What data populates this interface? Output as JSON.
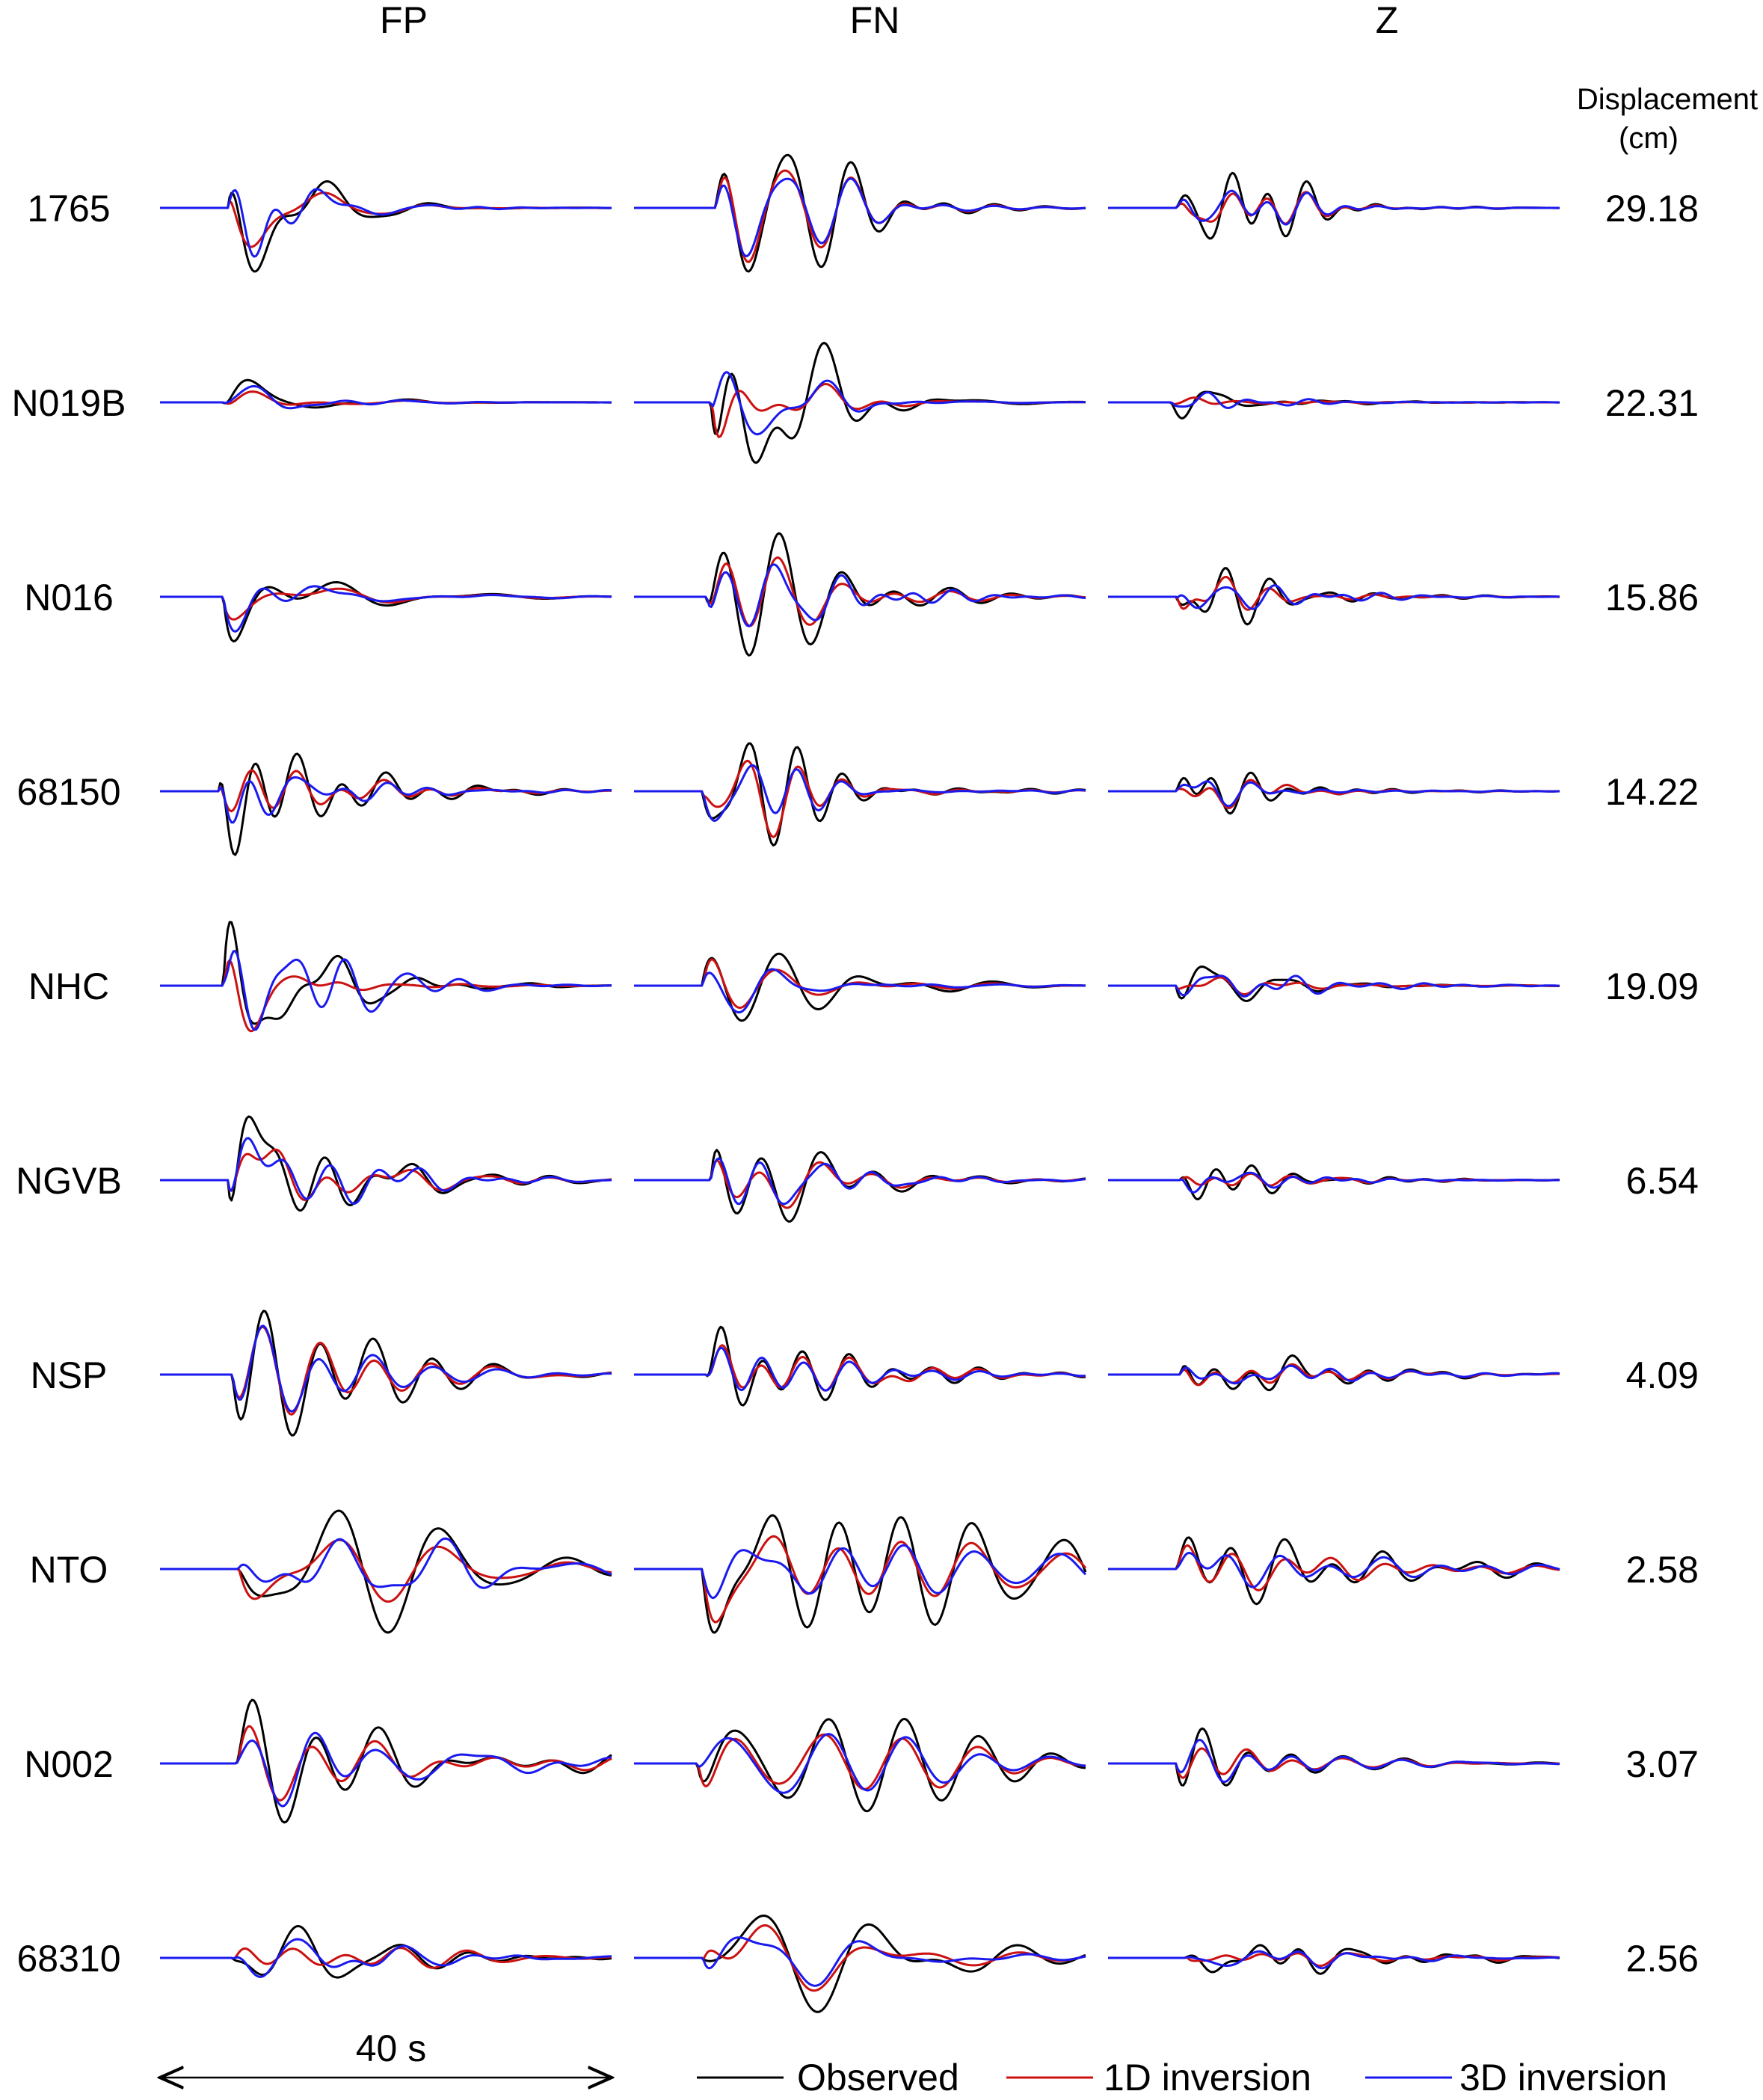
{
  "chart_data": {
    "type": "line",
    "column_headers": [
      "FP",
      "FN",
      "Z"
    ],
    "value_header": [
      "Displacement",
      "(cm)"
    ],
    "time_scale_label": "40 s",
    "time_scale_seconds": 40,
    "legend": [
      {
        "label": "Observed",
        "color": "#000000"
      },
      {
        "label": "1D inversion",
        "color": "#cc1111"
      },
      {
        "label": "3D inversion",
        "color": "#1a1aee"
      }
    ],
    "legend_position": "bottom-right",
    "series_colors": {
      "observed": "#000000",
      "inv1d": "#cc1111",
      "inv3d": "#1a1aee"
    },
    "stations": [
      {
        "name": "1765",
        "displacement_cm": "29.18",
        "amp": [
          1.0,
          1.0,
          0.55
        ],
        "onset": [
          0.15,
          0.18,
          0.15
        ],
        "freq": [
          1.0,
          1.0,
          1.2
        ],
        "decay": [
          1.0,
          1.0,
          1.0
        ],
        "fit": [
          0.75,
          0.8,
          0.7
        ]
      },
      {
        "name": "N019B",
        "displacement_cm": "22.31",
        "amp": [
          0.35,
          0.95,
          0.25
        ],
        "onset": [
          0.14,
          0.17,
          0.14
        ],
        "freq": [
          0.9,
          1.0,
          1.3
        ],
        "decay": [
          0.9,
          1.0,
          0.9
        ],
        "fit": [
          0.7,
          0.45,
          0.45
        ]
      },
      {
        "name": "N016",
        "displacement_cm": "15.86",
        "amp": [
          0.7,
          1.0,
          0.45
        ],
        "onset": [
          0.14,
          0.16,
          0.15
        ],
        "freq": [
          0.8,
          1.1,
          1.2
        ],
        "decay": [
          0.8,
          0.8,
          0.8
        ],
        "fit": [
          0.8,
          0.75,
          0.7
        ]
      },
      {
        "name": "68150",
        "displacement_cm": "14.22",
        "amp": [
          1.0,
          0.85,
          0.35
        ],
        "onset": [
          0.13,
          0.15,
          0.15
        ],
        "freq": [
          1.0,
          1.1,
          1.2
        ],
        "decay": [
          0.75,
          0.8,
          0.8
        ],
        "fit": [
          0.6,
          0.65,
          0.65
        ]
      },
      {
        "name": "NHC",
        "displacement_cm": "19.09",
        "amp": [
          1.0,
          0.55,
          0.3
        ],
        "onset": [
          0.14,
          0.15,
          0.15
        ],
        "freq": [
          1.0,
          0.9,
          1.2
        ],
        "decay": [
          0.8,
          0.7,
          0.8
        ],
        "fit": [
          0.35,
          0.55,
          0.5
        ]
      },
      {
        "name": "NGVB",
        "displacement_cm": "6.54",
        "amp": [
          1.0,
          0.65,
          0.3
        ],
        "onset": [
          0.15,
          0.17,
          0.16
        ],
        "freq": [
          0.9,
          1.0,
          1.2
        ],
        "decay": [
          0.75,
          0.7,
          0.7
        ],
        "fit": [
          0.7,
          0.75,
          0.6
        ]
      },
      {
        "name": "NSP",
        "displacement_cm": "4.09",
        "amp": [
          1.0,
          0.75,
          0.3
        ],
        "onset": [
          0.16,
          0.16,
          0.16
        ],
        "freq": [
          0.75,
          0.9,
          1.0
        ],
        "decay": [
          0.5,
          0.55,
          0.55
        ],
        "fit": [
          0.75,
          0.8,
          0.75
        ]
      },
      {
        "name": "NTO",
        "displacement_cm": "2.58",
        "amp": [
          1.0,
          1.0,
          0.55
        ],
        "onset": [
          0.17,
          0.15,
          0.15
        ],
        "freq": [
          0.7,
          0.75,
          0.8
        ],
        "decay": [
          0.45,
          0.4,
          0.45
        ],
        "fit": [
          0.7,
          0.6,
          0.7
        ]
      },
      {
        "name": "N002",
        "displacement_cm": "3.07",
        "amp": [
          1.0,
          0.75,
          0.55
        ],
        "onset": [
          0.17,
          0.14,
          0.15
        ],
        "freq": [
          0.75,
          0.65,
          0.9
        ],
        "decay": [
          0.4,
          0.4,
          0.45
        ],
        "fit": [
          0.7,
          0.65,
          0.7
        ]
      },
      {
        "name": "68310",
        "displacement_cm": "2.56",
        "amp": [
          0.5,
          0.85,
          0.25
        ],
        "onset": [
          0.16,
          0.15,
          0.17
        ],
        "freq": [
          0.9,
          0.7,
          1.1
        ],
        "decay": [
          0.35,
          0.4,
          0.4
        ],
        "fit": [
          0.55,
          0.75,
          0.55
        ]
      }
    ]
  }
}
